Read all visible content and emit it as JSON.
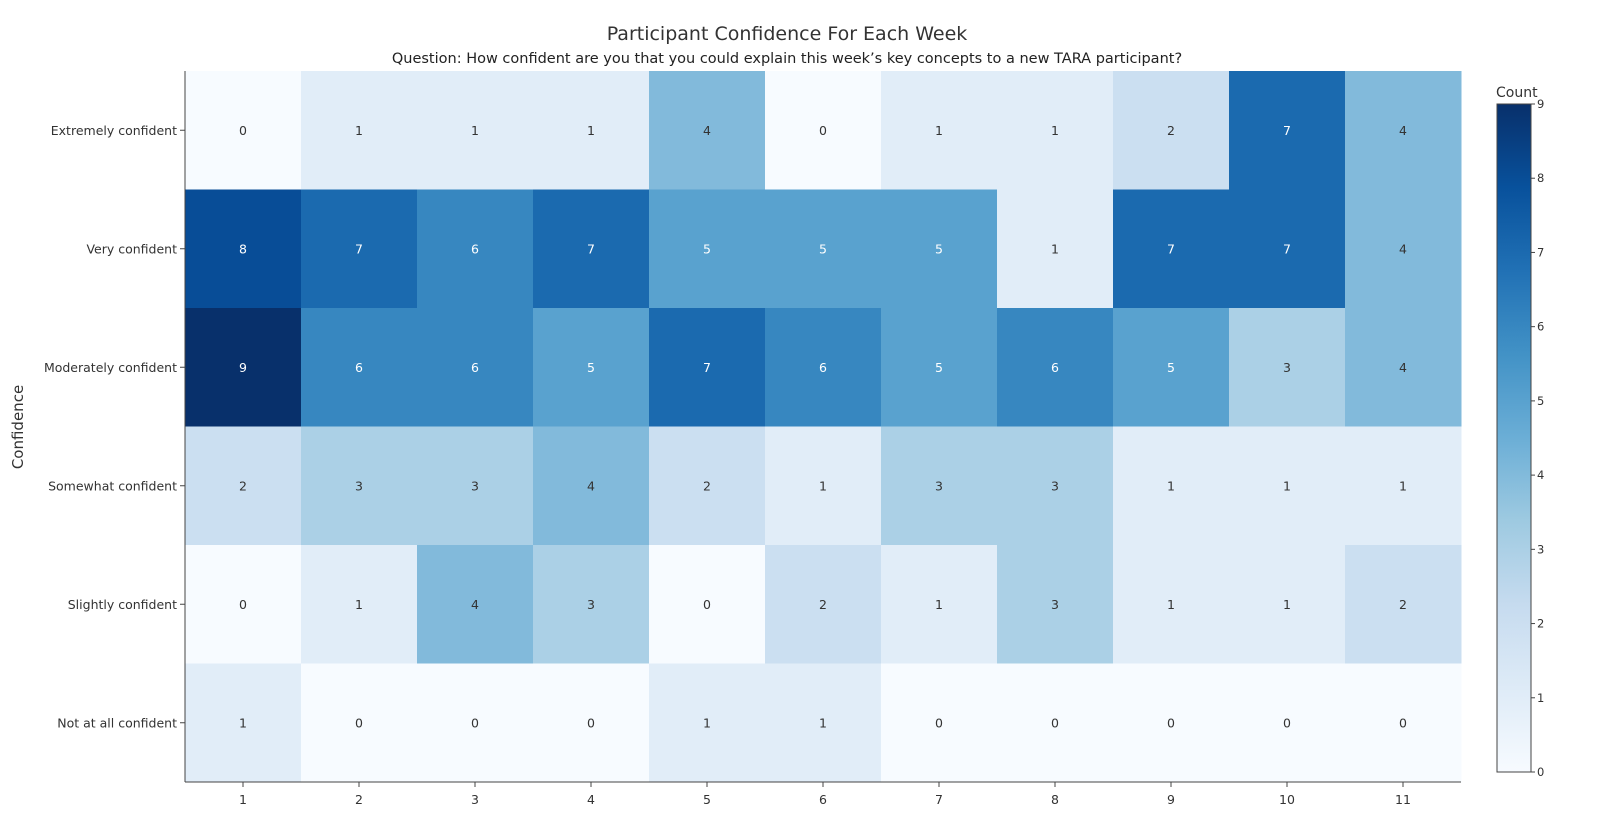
{
  "chart_data": {
    "type": "heatmap",
    "title": "Participant Confidence For Each Week",
    "subtitle": "Question: How confident are you that you could explain this week’s key concepts to a new TARA participant?",
    "ylabel": "Confidence",
    "xlabel": "",
    "x": [
      "1",
      "2",
      "3",
      "4",
      "5",
      "6",
      "7",
      "8",
      "9",
      "10",
      "11"
    ],
    "y": [
      "Extremely confident",
      "Very confident",
      "Moderately confident",
      "Somewhat confident",
      "Slightly confident",
      "Not at all confident"
    ],
    "z": [
      [
        0,
        1,
        1,
        1,
        4,
        0,
        1,
        1,
        2,
        7,
        4
      ],
      [
        8,
        7,
        6,
        7,
        5,
        5,
        5,
        1,
        7,
        7,
        4
      ],
      [
        9,
        6,
        6,
        5,
        7,
        6,
        5,
        6,
        5,
        3,
        4
      ],
      [
        2,
        3,
        3,
        4,
        2,
        1,
        3,
        3,
        1,
        1,
        1
      ],
      [
        0,
        1,
        4,
        3,
        0,
        2,
        1,
        3,
        1,
        1,
        2
      ],
      [
        1,
        0,
        0,
        0,
        1,
        1,
        0,
        0,
        0,
        0,
        0
      ]
    ],
    "colorbar": {
      "title": "Count",
      "range": [
        0,
        9
      ],
      "ticks": [
        "0",
        "1",
        "2",
        "3",
        "4",
        "5",
        "6",
        "7",
        "8",
        "9"
      ]
    },
    "colorscale": "Blues"
  }
}
